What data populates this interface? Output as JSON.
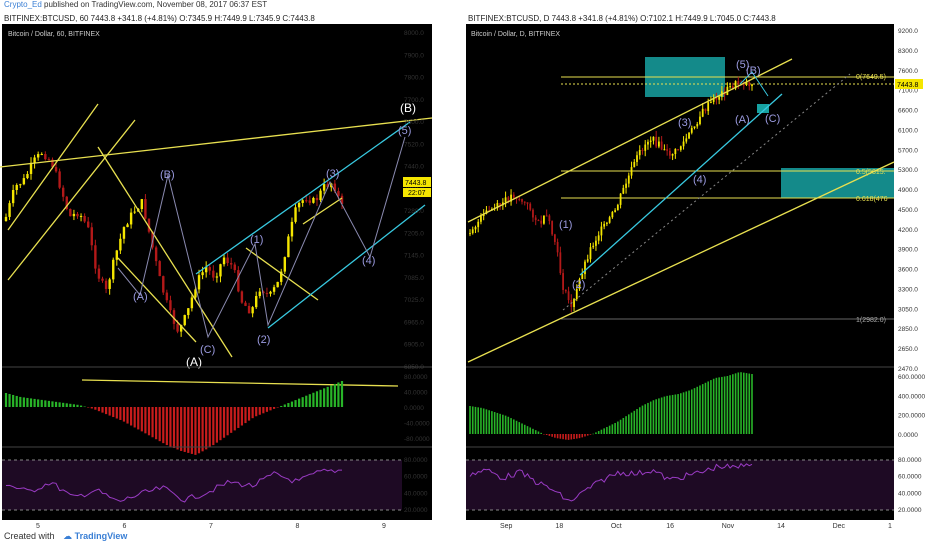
{
  "header": {
    "author": "Crypto_Ed",
    "publish_text": "published on TradingView.com, November 08, 2017 06:37 EST"
  },
  "footer": {
    "created_with": "Created with",
    "brand": "TradingView"
  },
  "colors": {
    "bg": "#000000",
    "up": "#f5e600",
    "down": "#b31919",
    "trend": "#e8e050",
    "channel": "#38c9e0",
    "wave": "#9a9adf",
    "zone": "#17a2a2",
    "hist_up": "#28b428",
    "hist_down": "#c81c1c",
    "rsi": "#9a3bc4"
  },
  "left": {
    "symbol_line": "BITFINEX:BTCUSD, 60  7443.8  +341.8 (+4.81%)  O:7345.9  H:7449.9  L:7345.9  C:7443.8",
    "title": "Bitcoin / Dollar, 60, BITFINEX",
    "price_ticks": [
      "8000.0",
      "7900.0",
      "7800.0",
      "7700.0",
      "7600.0",
      "7520.0",
      "7440.0",
      "7360.0",
      "7280.0",
      "7205.0",
      "7145.0",
      "7085.0",
      "7025.0",
      "6965.0",
      "6905.0",
      "6850.0"
    ],
    "price_tag": "7443.8",
    "time_tag": "22:07",
    "osc_ticks": [
      "80.0000",
      "40.0000",
      "0.0000",
      "-40.0000",
      "-80.0000"
    ],
    "rsi_ticks": [
      "80.0000",
      "60.0000",
      "40.0000",
      "20.0000"
    ],
    "x_ticks": [
      "5",
      "6",
      "7",
      "8",
      "9"
    ],
    "waves": [
      "(B)",
      "(A)",
      "(C)",
      "(A)",
      "(1)",
      "(2)",
      "(3)",
      "(4)",
      "(5)",
      "(B)"
    ]
  },
  "right": {
    "symbol_line": "BITFINEX:BTCUSD, D  7443.8  +341.8 (+4.81%)  O:7102.1  H:7449.9  L:7045.0  C:7443.8",
    "title": "Bitcoin / Dollar, D, BITFINEX",
    "price_ticks": [
      "9200.0",
      "8300.0",
      "7600.0",
      "7100.0",
      "6600.0",
      "6100.0",
      "5700.0",
      "5300.0",
      "4900.0",
      "4500.0",
      "4200.0",
      "3900.0",
      "3600.0",
      "3300.0",
      "3050.0",
      "2850.0",
      "2650.0",
      "2470.0"
    ],
    "price_tag": "7443.8",
    "fib": [
      "0(7649.5)",
      "0.5(5315.",
      "0.618(476",
      "1(2982.0)"
    ],
    "osc_ticks": [
      "600.0000",
      "400.0000",
      "200.0000",
      "0.0000"
    ],
    "rsi_ticks": [
      "80.0000",
      "60.0000",
      "40.0000",
      "20.0000"
    ],
    "x_ticks": [
      "Sep",
      "18",
      "Oct",
      "16",
      "Nov",
      "14",
      "Dec",
      "1"
    ],
    "waves": [
      "(1)",
      "(2)",
      "(3)",
      "(4)",
      "(5)",
      "(B)",
      "(A)",
      "(C)"
    ]
  }
}
